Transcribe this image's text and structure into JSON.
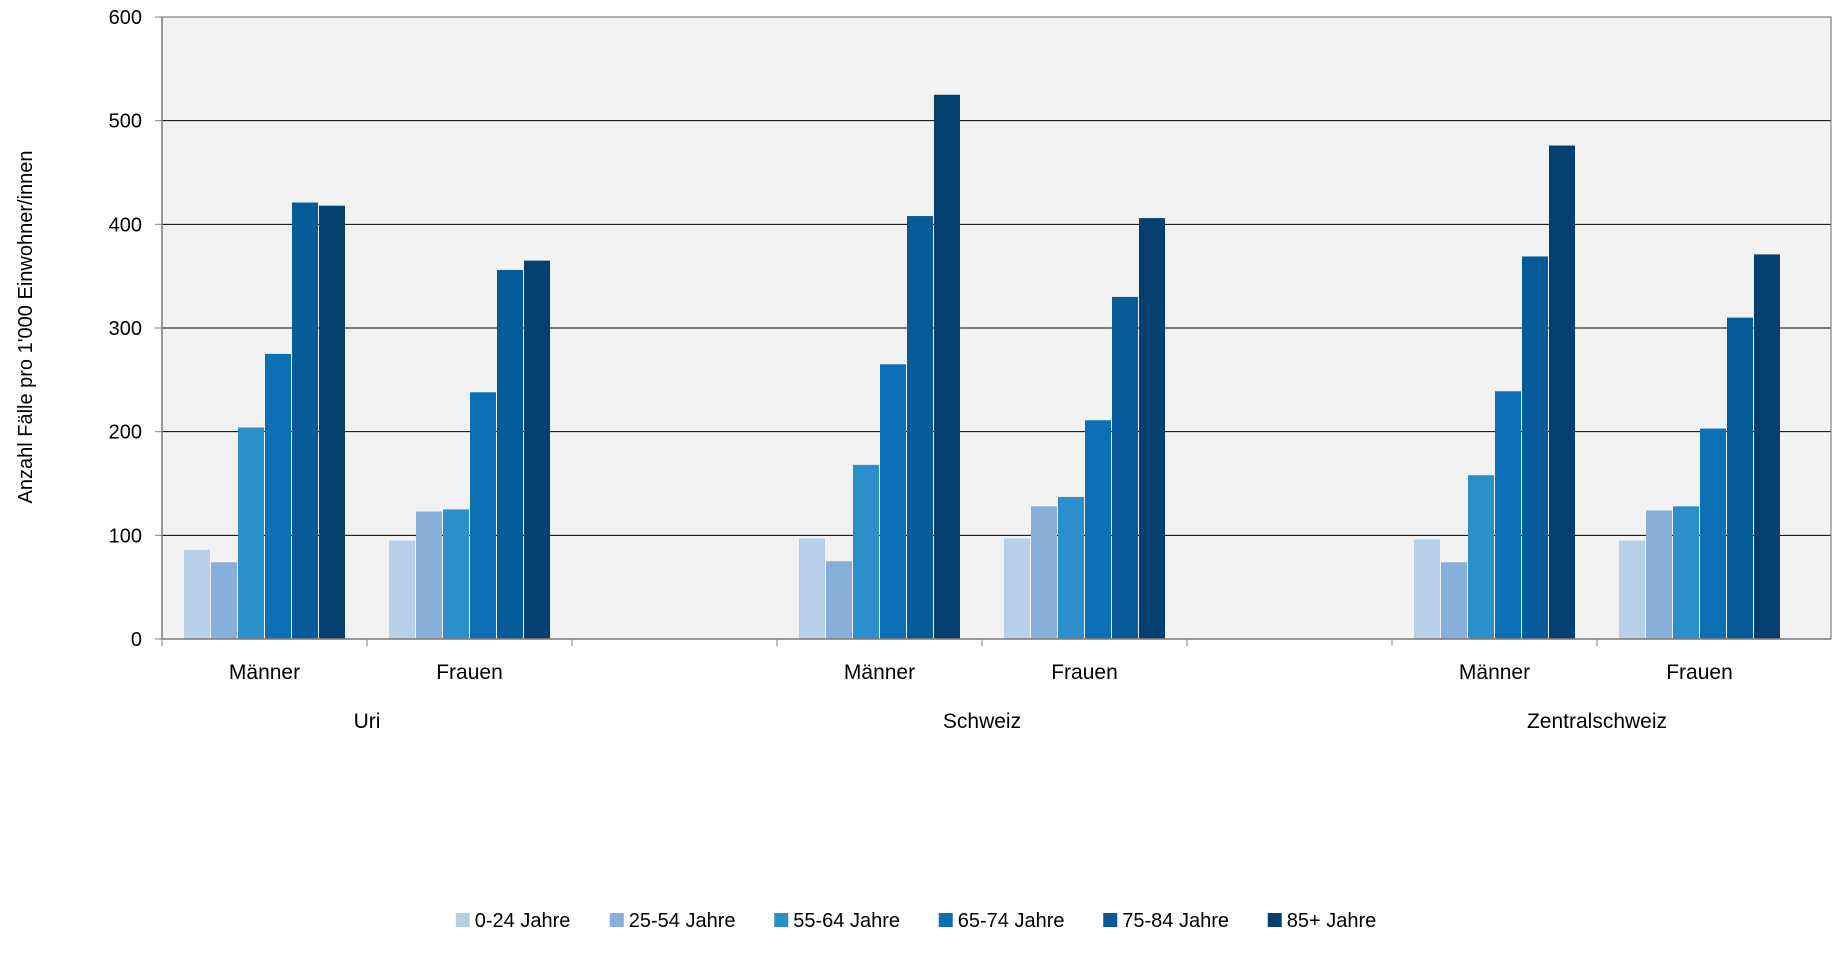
{
  "chart_data": {
    "type": "bar",
    "title": "",
    "ylabel": "Anzahl Fälle pro 1'000 Einwohner/innen",
    "ylim": [
      0,
      600
    ],
    "yticks": [
      0,
      100,
      200,
      300,
      400,
      500,
      600
    ],
    "grid": true,
    "legend_position": "bottom",
    "groups": [
      {
        "name": "Uri",
        "categories": [
          "Männer",
          "Frauen"
        ]
      },
      {
        "name": "Schweiz",
        "categories": [
          "Männer",
          "Frauen"
        ]
      },
      {
        "name": "Zentralschweiz",
        "categories": [
          "Männer",
          "Frauen"
        ]
      }
    ],
    "categories": [
      "Uri Männer",
      "Uri Frauen",
      "Schweiz Männer",
      "Schweiz Frauen",
      "Zentralschweiz Männer",
      "Zentralschweiz Frauen"
    ],
    "series": [
      {
        "name": "0-24 Jahre",
        "color": "#b8cfea",
        "values": [
          86,
          95,
          97,
          97,
          96,
          95
        ]
      },
      {
        "name": "25-54 Jahre",
        "color": "#87afd9",
        "values": [
          74,
          123,
          75,
          128,
          74,
          124
        ]
      },
      {
        "name": "55-64 Jahre",
        "color": "#2b8fcc",
        "values": [
          204,
          125,
          168,
          137,
          158,
          128
        ]
      },
      {
        "name": "65-74 Jahre",
        "color": "#0a6fb5",
        "values": [
          275,
          238,
          265,
          211,
          239,
          203
        ]
      },
      {
        "name": "75-84 Jahre",
        "color": "#055a9a",
        "values": [
          421,
          356,
          408,
          330,
          369,
          310
        ]
      },
      {
        "name": "85+ Jahre",
        "color": "#053f70",
        "values": [
          418,
          365,
          525,
          406,
          476,
          371
        ]
      }
    ],
    "plot_background": "#f2f2f2",
    "gridline_color": "#000000"
  }
}
